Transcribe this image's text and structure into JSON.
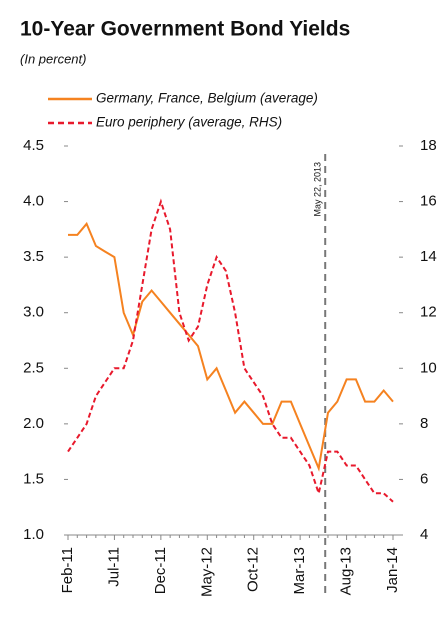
{
  "chart_data": {
    "type": "line",
    "title": "10-Year Government Bond Yields",
    "subtitle": "(In percent)",
    "annotation": "May 22, 2013",
    "categories": [
      "Feb-11",
      null,
      null,
      null,
      null,
      "Jul-11",
      null,
      null,
      null,
      null,
      "Dec-11",
      null,
      null,
      null,
      null,
      "May-12",
      null,
      null,
      null,
      null,
      "Oct-12",
      null,
      null,
      null,
      null,
      "Mar-13",
      null,
      null,
      null,
      null,
      "Aug-13",
      null,
      null,
      null,
      null,
      "Jan-14"
    ],
    "series": [
      {
        "name": "Germany, France, Belgium (average)",
        "color": "#f58220",
        "line_style": "solid",
        "values": [
          3.7,
          3.7,
          3.8,
          3.6,
          3.55,
          3.5,
          3.0,
          2.8,
          3.1,
          3.2,
          3.1,
          3.0,
          2.9,
          2.8,
          2.7,
          2.4,
          2.5,
          2.3,
          2.1,
          2.2,
          2.1,
          2.0,
          2.0,
          2.2,
          2.2,
          2.0,
          1.8,
          1.6,
          2.1,
          2.2,
          2.4,
          2.4,
          2.2,
          2.2,
          2.3,
          2.2
        ]
      },
      {
        "name": "Euro periphery (average, RHS)",
        "color": "#e8192c",
        "line_style": "dashed",
        "axis": "y2",
        "values": [
          7,
          7.5,
          8,
          9,
          9.5,
          10,
          10,
          11,
          13,
          15,
          16,
          15,
          12,
          11,
          11.5,
          13,
          14,
          13.5,
          12,
          10,
          9.5,
          9,
          8,
          7.5,
          7.5,
          7,
          6.5,
          5.5,
          7,
          7,
          6.5,
          6.5,
          6,
          5.5,
          5.5,
          5.2
        ]
      }
    ],
    "ylim": [
      1,
      4.5
    ],
    "yticks": [
      {
        "value": 1,
        "label": "1.0"
      },
      1.5,
      {
        "value": 2,
        "label": "2.0"
      },
      2.5,
      {
        "value": 3,
        "label": "3.0"
      },
      3.5,
      {
        "value": 4,
        "label": "4.0"
      },
      4.5
    ],
    "y2lim": [
      4,
      18
    ],
    "y2ticks": [
      4,
      6,
      8,
      10,
      12,
      14,
      16,
      18
    ],
    "grid": false
  }
}
